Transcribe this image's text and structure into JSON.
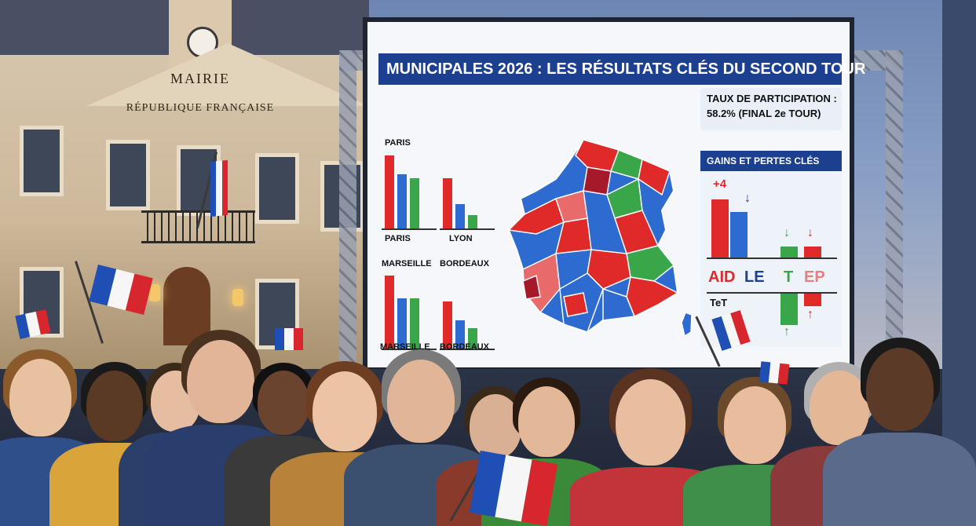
{
  "scene": {
    "building": {
      "sign": "MAIRIE",
      "inscription": "RÉPUBLIQUE FRANÇAISE"
    },
    "screen": {
      "title": "MUNICIPALES 2026 : LES RÉSULTATS CLÉS DU SECOND TOUR",
      "participation": {
        "line1": "TAUX DE PARTICIPATION :",
        "line2": "58.2% (FINAL 2e TOUR)"
      },
      "city_charts": [
        {
          "title": "PARIS",
          "label": "PARIS",
          "values": [
            100,
            75,
            70
          ]
        },
        {
          "title": "",
          "label": "LYON",
          "values": [
            70,
            35,
            20
          ]
        },
        {
          "title": "MARSEILLE",
          "label": "MARSEILLE",
          "values": [
            100,
            70,
            70
          ]
        },
        {
          "title": "BORDEAUX",
          "label": "BORDEAUX",
          "values": [
            65,
            40,
            30
          ]
        }
      ],
      "bar_colors": [
        "#e02a2a",
        "#2d6bd0",
        "#3aa64a"
      ],
      "gains": {
        "title": "GAINS ET PERTES CLÉS",
        "plus": "+4",
        "party_labels": [
          "AID",
          "LE",
          "T",
          "EP"
        ],
        "bottom_label": "TeT"
      }
    },
    "colors": {
      "red": "#e02a2a",
      "blue": "#2d6bd0",
      "green": "#3aa64a",
      "navy": "#1d3f8f"
    }
  }
}
